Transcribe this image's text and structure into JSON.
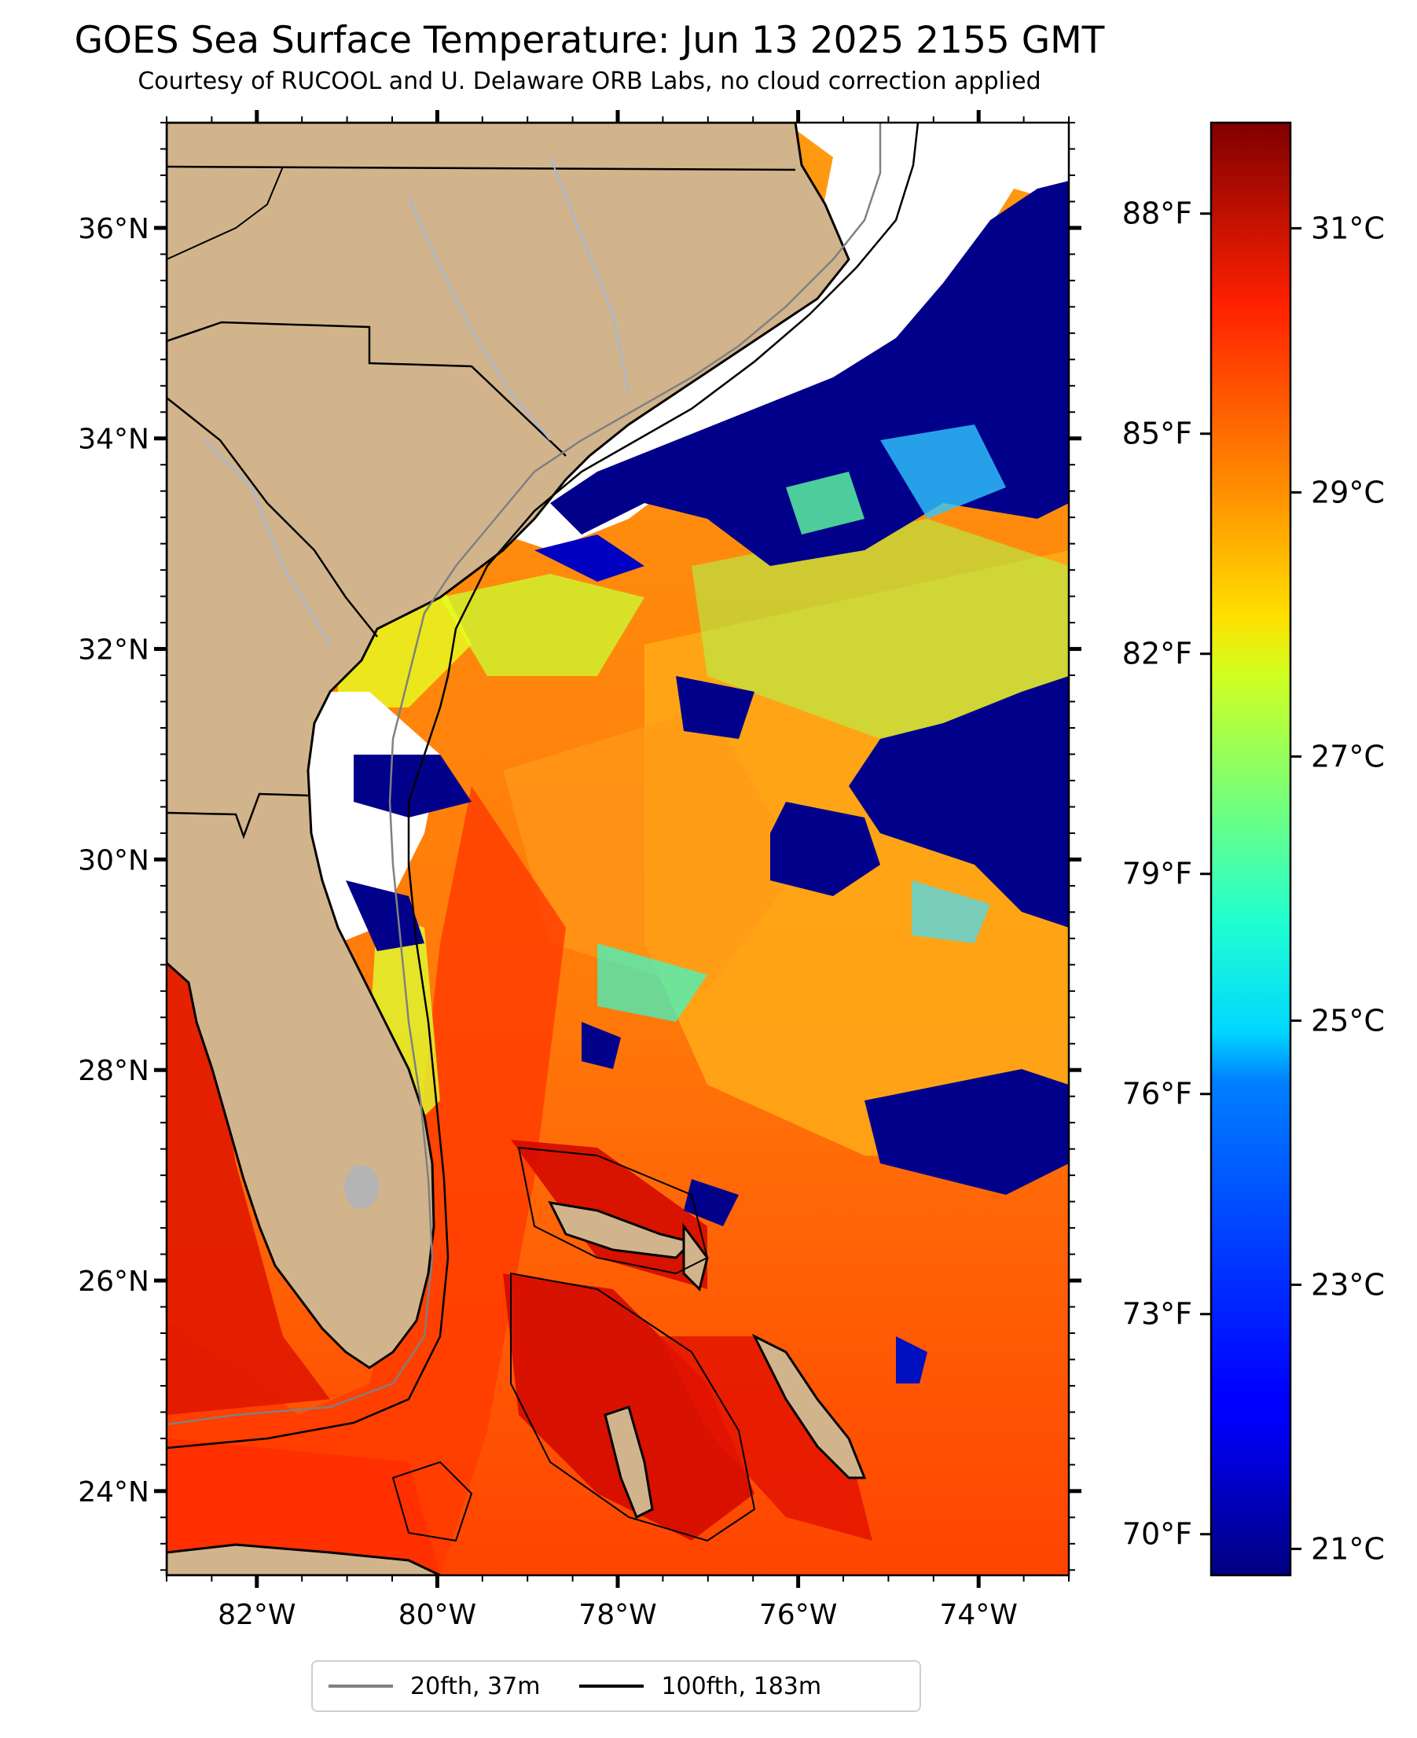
{
  "title": "GOES Sea Surface Temperature: Jun 13 2025 2155 GMT",
  "subtitle": "Courtesy of RUCOOL and U. Delaware ORB Labs, no cloud correction applied",
  "map": {
    "lon_range": [
      -83.0,
      -73.0
    ],
    "lat_range": [
      23.2,
      37.0
    ],
    "lon_ticks": [
      "82°W",
      "80°W",
      "78°W",
      "76°W",
      "74°W"
    ],
    "lat_ticks": [
      "36°N",
      "34°N",
      "32°N",
      "30°N",
      "28°N",
      "26°N",
      "24°N"
    ],
    "colors": {
      "land": "#d2b48c",
      "no_data": "#ffffff",
      "cold": "#00008b",
      "warm": "#ff8c00",
      "hot": "#c80000",
      "isobath_20": "#808080",
      "isobath_100": "#000000"
    }
  },
  "colorbar": {
    "colormap": "jet",
    "celsius_range": [
      20.8,
      31.8
    ],
    "fahrenheit_ticks": [
      "88°F",
      "85°F",
      "82°F",
      "79°F",
      "76°F",
      "73°F",
      "70°F"
    ],
    "celsius_ticks": [
      "31°C",
      "29°C",
      "27°C",
      "25°C",
      "23°C",
      "21°C"
    ]
  },
  "legend": {
    "items": [
      {
        "label": "20fth, 37m",
        "color": "#808080"
      },
      {
        "label": "100fth, 183m",
        "color": "#000000"
      }
    ]
  }
}
